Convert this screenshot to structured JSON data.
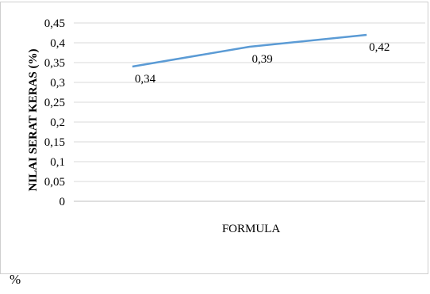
{
  "chart_data": {
    "type": "line",
    "x": [
      1,
      2,
      3
    ],
    "series": [
      {
        "values": [
          0.34,
          0.39,
          0.42
        ],
        "color": "#5b9bd5",
        "data_labels": [
          "0,34",
          "0,39",
          "0,42"
        ]
      }
    ],
    "title": "",
    "xlabel": "FORMULA",
    "ylabel": "NILAI SERAT KERAS (%)",
    "ylim": [
      0,
      0.45
    ],
    "yticks": [
      0,
      0.05,
      0.1,
      0.15,
      0.2,
      0.25,
      0.3,
      0.35,
      0.4,
      0.45
    ],
    "ytick_labels": [
      "0",
      "0,05",
      "0,1",
      "0,15",
      "0,2",
      "0,25",
      "0,3",
      "0,35",
      "0,4",
      "0,45"
    ],
    "grid": true,
    "legend": "none"
  },
  "footer": {
    "text": "%"
  }
}
